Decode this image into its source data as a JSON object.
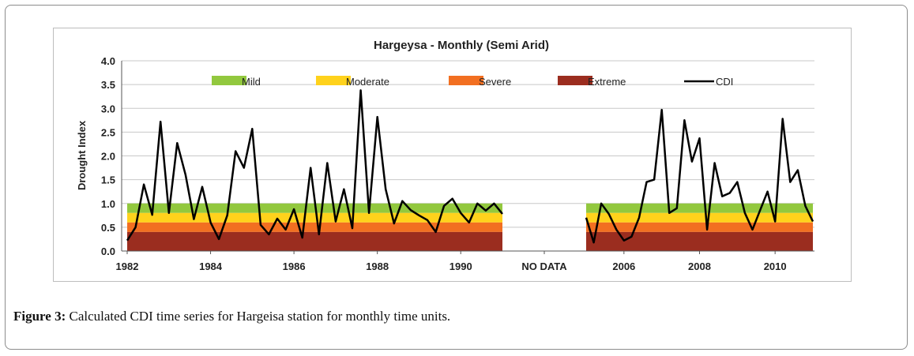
{
  "figure": {
    "caption_label": "Figure 3:",
    "caption_text": "Calculated CDI time series for Hargeisa station for monthly time units."
  },
  "chart_data": {
    "type": "line",
    "title": "Hargeysa - Monthly (Semi Arid)",
    "xlabel": "",
    "ylabel": "Drought Index",
    "ylim": [
      0,
      4.0
    ],
    "yticks": [
      "0.0",
      "0.5",
      "1.0",
      "1.5",
      "2.0",
      "2.5",
      "3.0",
      "3.5",
      "4.0"
    ],
    "xtick_labels": [
      "1982",
      "1984",
      "1986",
      "1988",
      "1990",
      "NO DATA",
      "2006",
      "2008",
      "2010"
    ],
    "grid": true,
    "legend": "top",
    "bands": [
      {
        "name": "Mild",
        "from": 0.8,
        "to": 1.0,
        "color": "#92c83e"
      },
      {
        "name": "Moderate",
        "from": 0.6,
        "to": 0.8,
        "color": "#ffd21c"
      },
      {
        "name": "Severe",
        "from": 0.4,
        "to": 0.6,
        "color": "#f26f21"
      },
      {
        "name": "Extreme",
        "from": 0.0,
        "to": 0.4,
        "color": "#9b2d1f"
      }
    ],
    "series": [
      {
        "name": "CDI",
        "color": "#000000",
        "segments": [
          {
            "x": [
              1982.0,
              1982.2,
              1982.4,
              1982.6,
              1982.8,
              1983.0,
              1983.2,
              1983.4,
              1983.6,
              1983.8,
              1984.0,
              1984.2,
              1984.4,
              1984.6,
              1984.8,
              1985.0,
              1985.2,
              1985.4,
              1985.6,
              1985.8,
              1986.0,
              1986.2,
              1986.4,
              1986.6,
              1986.8,
              1987.0,
              1987.2,
              1987.4,
              1987.6,
              1987.8,
              1988.0,
              1988.2,
              1988.4,
              1988.6,
              1988.8,
              1989.0,
              1989.2,
              1989.4,
              1989.6,
              1989.8,
              1990.0,
              1990.2,
              1990.4,
              1990.6,
              1990.8,
              1991.0
            ],
            "y": [
              0.22,
              0.5,
              1.4,
              0.76,
              2.72,
              0.8,
              2.27,
              1.6,
              0.67,
              1.35,
              0.6,
              0.25,
              0.75,
              2.1,
              1.75,
              2.57,
              0.55,
              0.35,
              0.68,
              0.45,
              0.88,
              0.28,
              1.75,
              0.35,
              1.85,
              0.62,
              1.3,
              0.48,
              3.38,
              0.8,
              2.82,
              1.3,
              0.58,
              1.05,
              0.86,
              0.75,
              0.65,
              0.4,
              0.95,
              1.1,
              0.8,
              0.6,
              1.0,
              0.85,
              1.0,
              0.78
            ]
          },
          {
            "x": [
              2005.0,
              2005.2,
              2005.4,
              2005.6,
              2005.8,
              2006.0,
              2006.2,
              2006.4,
              2006.6,
              2006.8,
              2007.0,
              2007.2,
              2007.4,
              2007.6,
              2007.8,
              2008.0,
              2008.2,
              2008.4,
              2008.6,
              2008.8,
              2009.0,
              2009.2,
              2009.4,
              2009.6,
              2009.8,
              2010.0,
              2010.2,
              2010.4,
              2010.6,
              2010.8,
              2011.0
            ],
            "y": [
              0.7,
              0.18,
              1.0,
              0.78,
              0.45,
              0.22,
              0.3,
              0.7,
              1.45,
              1.5,
              2.97,
              0.8,
              0.9,
              2.75,
              1.88,
              2.37,
              0.45,
              1.85,
              1.15,
              1.22,
              1.45,
              0.8,
              0.45,
              0.85,
              1.25,
              0.62,
              2.78,
              1.45,
              1.7,
              0.95,
              0.62
            ]
          }
        ]
      }
    ]
  }
}
